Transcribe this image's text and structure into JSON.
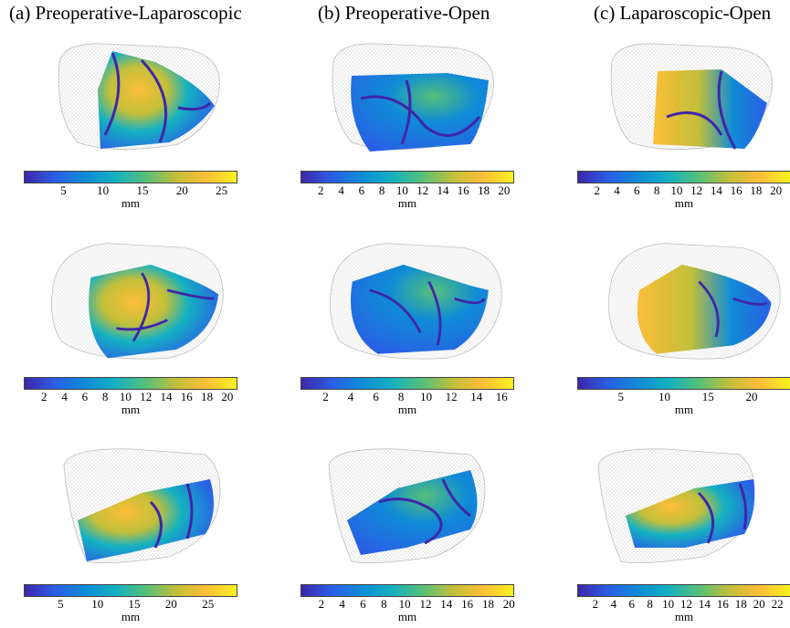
{
  "columns": [
    {
      "title": "(a) Preoperative-Laparoscopic"
    },
    {
      "title": "(b) Preoperative-Open"
    },
    {
      "title": "(c) Laparoscopic-Open"
    }
  ],
  "unit_label": "mm",
  "colormap": [
    "#3e26a8",
    "#2a5ee6",
    "#0f8cd6",
    "#14b1c1",
    "#55c078",
    "#c2bf3a",
    "#fcbe38",
    "#f9f120"
  ],
  "colorbars": [
    {
      "id": "r1c1",
      "max": 27,
      "ticks": [
        5,
        10,
        15,
        20,
        25
      ]
    },
    {
      "id": "r1c2",
      "max": 21,
      "ticks": [
        2,
        4,
        6,
        8,
        10,
        12,
        14,
        16,
        18,
        20
      ]
    },
    {
      "id": "r1c3",
      "max": 21.5,
      "ticks": [
        2,
        4,
        6,
        8,
        10,
        12,
        14,
        16,
        18,
        20
      ]
    },
    {
      "id": "r2c1",
      "max": 21,
      "ticks": [
        2,
        4,
        6,
        8,
        10,
        12,
        14,
        16,
        18,
        20
      ]
    },
    {
      "id": "r2c2",
      "max": 17,
      "ticks": [
        2,
        4,
        6,
        8,
        10,
        12,
        14,
        16
      ]
    },
    {
      "id": "r2c3",
      "max": 24.5,
      "ticks": [
        5,
        10,
        15,
        20
      ]
    },
    {
      "id": "r3c1",
      "max": 29,
      "ticks": [
        5,
        10,
        15,
        20,
        25
      ]
    },
    {
      "id": "r3c2",
      "max": 20.5,
      "ticks": [
        2,
        4,
        6,
        8,
        10,
        12,
        14,
        16,
        18,
        20
      ]
    },
    {
      "id": "r3c3",
      "max": 23.5,
      "ticks": [
        2,
        4,
        6,
        8,
        10,
        12,
        14,
        16,
        18,
        20,
        22
      ]
    }
  ]
}
